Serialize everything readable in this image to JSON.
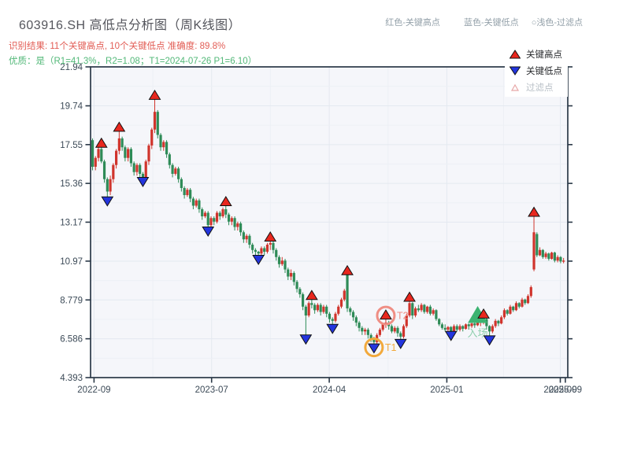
{
  "header": {
    "title": "603916.SH 高低点分析图（周K线图）",
    "result_line": "识别结果: 11个关键高点, 10个关键低点  准确度: 89.8%",
    "quality_line": "优质：是（R1=41.3%，R2=1.08；T1=2024-07-26 P1=6.10）",
    "hint_high": "红色-关键高点",
    "hint_low": "蓝色-关键低点",
    "hint_filter": "○浅色-过滤点"
  },
  "legend": {
    "high": "关键高点",
    "low": "关键低点",
    "filtered": "过滤点"
  },
  "colors": {
    "title": "#54555c",
    "result": "#e25c54",
    "quality": "#52b878",
    "hint": "#93a0a9",
    "candle_up": "#d0342c",
    "candle_down": "#2e8b57",
    "marker_high": "#e8271e",
    "marker_low": "#2335de",
    "marker_edge": "#111111",
    "entry": "#3cb371",
    "entry_text": "#8fcfae",
    "t1": "#f2a93b",
    "t2": "#ef8e84",
    "axis_text": "#3c4a57",
    "spine": "#2a3847",
    "grid_major": "#e4e9f0",
    "grid_minor": "#edf0f5",
    "plot_bg": "#f5f6fa"
  },
  "chart_data": {
    "type": "candlestick",
    "title": "603916.SH 周K线（weekly K-line）",
    "frequency": "weekly",
    "ylim": [
      4.393,
      21.94
    ],
    "y_ticks": [
      "21.94",
      "19.74",
      "17.55",
      "15.36",
      "13.17",
      "10.97",
      "8.779",
      "6.586",
      "4.393"
    ],
    "x_ticks": [
      {
        "label": "2022-09",
        "week": 0.5
      },
      {
        "label": "2023-07",
        "week": 40.2
      },
      {
        "label": "2024-04",
        "week": 79.9
      },
      {
        "label": "2025-01",
        "week": 119.6
      },
      {
        "label": "2025-09",
        "week": 157.9
      },
      {
        "label": "2025-09",
        "week": 159.6
      }
    ],
    "candles": [
      [
        17.8,
        17.9,
        16.1,
        16.3
      ],
      [
        16.3,
        16.9,
        16.1,
        16.8
      ],
      [
        16.8,
        17.4,
        16.6,
        17.3
      ],
      [
        17.3,
        17.6,
        16.5,
        16.6
      ],
      [
        16.6,
        16.7,
        15.4,
        15.6
      ],
      [
        15.6,
        15.7,
        14.4,
        14.9
      ],
      [
        14.9,
        15.8,
        14.7,
        15.6
      ],
      [
        15.6,
        16.5,
        15.4,
        16.4
      ],
      [
        16.4,
        17.3,
        16.2,
        17.2
      ],
      [
        17.2,
        18.5,
        17.0,
        17.9
      ],
      [
        17.9,
        18.0,
        17.2,
        17.4
      ],
      [
        17.4,
        17.5,
        16.6,
        16.8
      ],
      [
        16.8,
        17.4,
        16.6,
        17.3
      ],
      [
        17.3,
        17.4,
        16.3,
        16.5
      ],
      [
        16.5,
        16.6,
        15.8,
        16.0
      ],
      [
        16.0,
        16.5,
        15.8,
        16.4
      ],
      [
        16.4,
        16.5,
        15.7,
        15.9
      ],
      [
        15.9,
        16.0,
        15.5,
        15.7
      ],
      [
        15.7,
        16.7,
        15.6,
        16.6
      ],
      [
        16.6,
        17.6,
        16.4,
        17.5
      ],
      [
        17.5,
        18.5,
        17.3,
        18.4
      ],
      [
        18.4,
        20.3,
        18.2,
        19.4
      ],
      [
        19.4,
        19.5,
        17.9,
        18.1
      ],
      [
        18.1,
        18.2,
        17.2,
        17.4
      ],
      [
        17.4,
        17.8,
        17.2,
        17.7
      ],
      [
        17.7,
        17.8,
        16.8,
        17.0
      ],
      [
        17.0,
        17.1,
        16.2,
        16.4
      ],
      [
        16.4,
        16.5,
        15.7,
        15.9
      ],
      [
        15.9,
        16.3,
        15.8,
        16.2
      ],
      [
        16.2,
        16.3,
        15.4,
        15.6
      ],
      [
        15.6,
        15.7,
        14.9,
        15.1
      ],
      [
        15.1,
        15.2,
        14.5,
        14.7
      ],
      [
        14.7,
        15.1,
        14.6,
        15.0
      ],
      [
        15.0,
        15.1,
        14.3,
        14.5
      ],
      [
        14.5,
        14.6,
        13.9,
        14.1
      ],
      [
        14.1,
        14.5,
        14.0,
        14.4
      ],
      [
        14.4,
        14.5,
        13.7,
        13.9
      ],
      [
        13.9,
        14.0,
        13.3,
        13.5
      ],
      [
        13.5,
        13.8,
        13.4,
        13.7
      ],
      [
        13.7,
        13.8,
        12.7,
        13.0
      ],
      [
        13.0,
        13.5,
        12.9,
        13.4
      ],
      [
        13.4,
        13.5,
        13.0,
        13.2
      ],
      [
        13.2,
        13.8,
        13.1,
        13.7
      ],
      [
        13.7,
        13.8,
        13.3,
        13.5
      ],
      [
        13.5,
        14.0,
        13.4,
        13.9
      ],
      [
        13.9,
        14.3,
        13.4,
        13.6
      ],
      [
        13.6,
        13.7,
        13.0,
        13.2
      ],
      [
        13.2,
        13.5,
        13.0,
        13.4
      ],
      [
        13.4,
        13.5,
        12.7,
        12.9
      ],
      [
        12.9,
        13.2,
        12.7,
        13.1
      ],
      [
        13.1,
        13.2,
        12.4,
        12.6
      ],
      [
        12.6,
        12.7,
        12.0,
        12.2
      ],
      [
        12.2,
        12.5,
        12.0,
        12.4
      ],
      [
        12.4,
        12.5,
        11.7,
        11.9
      ],
      [
        11.9,
        12.0,
        11.4,
        11.6
      ],
      [
        11.6,
        11.7,
        11.2,
        11.5
      ],
      [
        11.5,
        11.55,
        11.1,
        11.4
      ],
      [
        11.4,
        11.8,
        11.3,
        11.7
      ],
      [
        11.7,
        11.8,
        11.3,
        11.5
      ],
      [
        11.5,
        12.0,
        11.4,
        11.9
      ],
      [
        11.9,
        12.3,
        11.6,
        12.0
      ],
      [
        12.0,
        12.1,
        11.4,
        11.6
      ],
      [
        11.6,
        11.7,
        11.0,
        11.2
      ],
      [
        11.2,
        11.3,
        10.6,
        10.8
      ],
      [
        10.8,
        11.2,
        10.7,
        11.0
      ],
      [
        11.0,
        11.1,
        10.3,
        10.5
      ],
      [
        10.5,
        10.6,
        9.9,
        10.1
      ],
      [
        10.1,
        10.5,
        9.9,
        10.3
      ],
      [
        10.3,
        10.4,
        9.6,
        9.8
      ],
      [
        9.8,
        9.9,
        9.2,
        9.4
      ],
      [
        9.4,
        9.5,
        8.9,
        9.1
      ],
      [
        9.1,
        9.2,
        8.2,
        8.4
      ],
      [
        8.4,
        8.5,
        6.6,
        7.9
      ],
      [
        7.9,
        8.7,
        7.8,
        8.6
      ],
      [
        8.6,
        9.0,
        8.3,
        8.5
      ],
      [
        8.5,
        8.6,
        8.0,
        8.2
      ],
      [
        8.2,
        8.6,
        8.1,
        8.5
      ],
      [
        8.5,
        8.6,
        7.9,
        8.1
      ],
      [
        8.1,
        8.5,
        8.0,
        8.4
      ],
      [
        8.4,
        8.5,
        7.8,
        8.0
      ],
      [
        8.0,
        8.1,
        7.5,
        7.7
      ],
      [
        7.7,
        7.8,
        7.2,
        7.6
      ],
      [
        7.6,
        8.1,
        7.5,
        8.0
      ],
      [
        8.0,
        8.5,
        7.9,
        8.4
      ],
      [
        8.4,
        8.9,
        8.3,
        8.8
      ],
      [
        8.8,
        9.4,
        8.7,
        9.3
      ],
      [
        10.2,
        10.4,
        8.1,
        8.3
      ],
      [
        8.3,
        8.4,
        7.9,
        8.1
      ],
      [
        8.1,
        8.2,
        7.6,
        7.8
      ],
      [
        7.8,
        7.9,
        7.3,
        7.5
      ],
      [
        7.5,
        7.6,
        7.0,
        7.2
      ],
      [
        7.2,
        7.3,
        6.8,
        7.0
      ],
      [
        7.0,
        7.2,
        6.8,
        7.1
      ],
      [
        7.1,
        7.2,
        6.6,
        6.8
      ],
      [
        6.8,
        6.9,
        6.4,
        6.6
      ],
      [
        6.6,
        6.7,
        6.1,
        6.4
      ],
      [
        6.4,
        6.9,
        6.3,
        6.8
      ],
      [
        6.8,
        7.2,
        6.7,
        7.1
      ],
      [
        7.1,
        7.5,
        7.0,
        7.4
      ],
      [
        7.4,
        7.9,
        7.2,
        7.5
      ],
      [
        7.5,
        7.6,
        7.1,
        7.3
      ],
      [
        7.3,
        7.4,
        6.9,
        7.0
      ],
      [
        7.0,
        7.3,
        6.9,
        7.2
      ],
      [
        7.2,
        7.3,
        6.7,
        6.9
      ],
      [
        6.9,
        7.0,
        6.35,
        6.7
      ],
      [
        6.7,
        7.4,
        6.6,
        7.3
      ],
      [
        7.3,
        8.0,
        7.2,
        7.9
      ],
      [
        7.9,
        8.9,
        7.8,
        8.6
      ],
      [
        8.6,
        8.65,
        7.7,
        7.9
      ],
      [
        7.9,
        8.4,
        7.8,
        8.3
      ],
      [
        8.3,
        8.5,
        8.1,
        8.2
      ],
      [
        8.2,
        8.6,
        8.1,
        8.5
      ],
      [
        8.5,
        8.55,
        8.0,
        8.1
      ],
      [
        8.1,
        8.45,
        8.0,
        8.4
      ],
      [
        8.4,
        8.5,
        7.9,
        8.0
      ],
      [
        8.0,
        8.3,
        7.9,
        8.2
      ],
      [
        8.2,
        8.25,
        7.6,
        7.7
      ],
      [
        7.7,
        7.75,
        7.3,
        7.4
      ],
      [
        7.4,
        7.5,
        7.1,
        7.2
      ],
      [
        7.2,
        7.4,
        7.0,
        7.1
      ],
      [
        7.1,
        7.3,
        6.95,
        7.25
      ],
      [
        7.25,
        7.3,
        6.8,
        7.0
      ],
      [
        7.0,
        7.4,
        6.9,
        7.3
      ],
      [
        7.3,
        7.4,
        7.0,
        7.1
      ],
      [
        7.1,
        7.4,
        7.0,
        7.3
      ],
      [
        7.3,
        7.35,
        7.0,
        7.15
      ],
      [
        7.15,
        7.45,
        7.1,
        7.4
      ],
      [
        7.4,
        7.45,
        7.1,
        7.3
      ],
      [
        7.3,
        7.5,
        7.2,
        7.45
      ],
      [
        7.45,
        7.5,
        7.2,
        7.35
      ],
      [
        7.35,
        7.55,
        7.3,
        7.5
      ],
      [
        7.5,
        7.6,
        7.3,
        7.55
      ],
      [
        7.55,
        7.95,
        7.4,
        7.7
      ],
      [
        7.7,
        7.75,
        7.1,
        7.3
      ],
      [
        7.3,
        7.35,
        6.55,
        7.0
      ],
      [
        7.0,
        7.4,
        6.9,
        7.3
      ],
      [
        7.3,
        7.7,
        7.2,
        7.6
      ],
      [
        7.6,
        7.65,
        7.3,
        7.45
      ],
      [
        7.45,
        7.9,
        7.4,
        7.8
      ],
      [
        7.8,
        8.3,
        7.7,
        8.2
      ],
      [
        8.2,
        8.25,
        7.9,
        8.0
      ],
      [
        8.0,
        8.5,
        7.95,
        8.4
      ],
      [
        8.4,
        8.45,
        8.1,
        8.2
      ],
      [
        8.2,
        8.7,
        8.15,
        8.6
      ],
      [
        8.6,
        8.65,
        8.3,
        8.4
      ],
      [
        8.4,
        8.9,
        8.35,
        8.8
      ],
      [
        8.8,
        8.85,
        8.5,
        8.6
      ],
      [
        8.6,
        9.1,
        8.55,
        9.0
      ],
      [
        9.0,
        9.6,
        8.9,
        9.5
      ],
      [
        10.5,
        13.7,
        10.4,
        12.6
      ],
      [
        12.5,
        12.6,
        11.2,
        11.3
      ],
      [
        11.3,
        11.75,
        11.25,
        11.6
      ],
      [
        11.6,
        11.65,
        11.1,
        11.2
      ],
      [
        11.2,
        11.5,
        11.1,
        11.4
      ],
      [
        11.4,
        11.45,
        11.0,
        11.1
      ],
      [
        11.1,
        11.5,
        11.05,
        11.45
      ],
      [
        11.45,
        11.5,
        10.9,
        11.0
      ],
      [
        11.0,
        11.3,
        10.9,
        11.2
      ],
      [
        11.2,
        11.25,
        10.85,
        10.95
      ],
      [
        10.95,
        11.15,
        10.85,
        11.0
      ]
    ],
    "key_high_weeks": [
      3,
      9,
      21,
      45,
      60,
      74,
      86,
      99,
      107,
      132,
      149
    ],
    "key_low_weeks": [
      5,
      17,
      39,
      56,
      72,
      81,
      95,
      104,
      121,
      134
    ],
    "annotations": {
      "t1": {
        "label": "T1",
        "week": 95
      },
      "t2": {
        "label": "T2",
        "week": 99
      },
      "entry": {
        "label": "入场",
        "week": 130
      }
    },
    "stats": {
      "key_highs": 11,
      "key_lows": 10,
      "accuracy_pct": 89.8,
      "r1_pct": 41.3,
      "r2": 1.08,
      "t1_date": "2024-07-26",
      "p1": 6.1
    }
  }
}
